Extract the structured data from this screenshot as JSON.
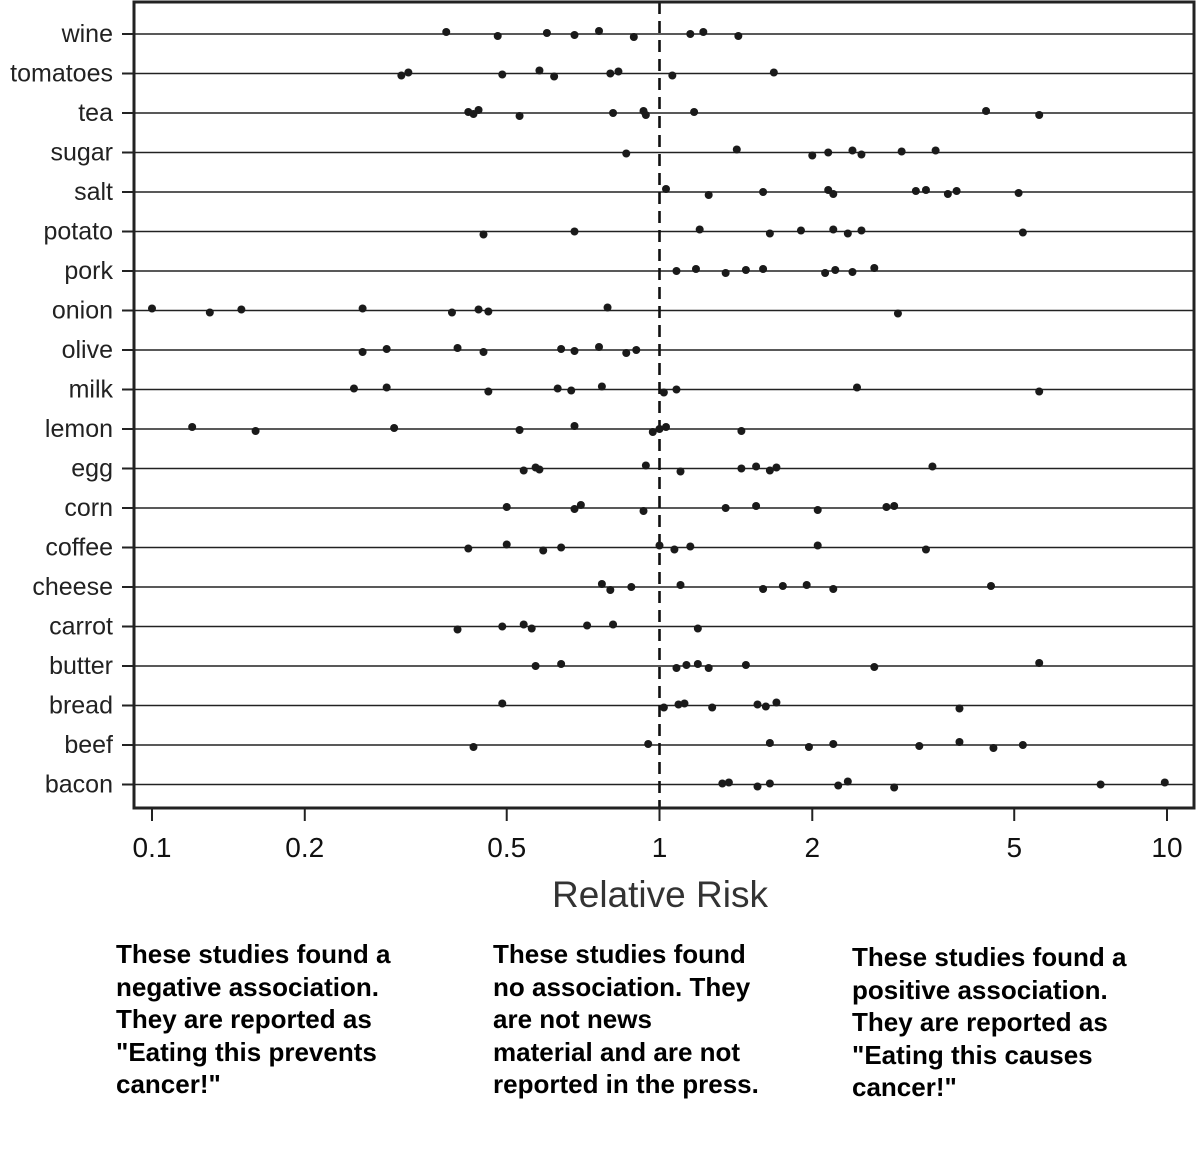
{
  "chart_data": {
    "type": "scatter",
    "xlabel": "Relative Risk",
    "xscale": "log",
    "xlim": [
      0.095,
      10.5
    ],
    "xticks": [
      0.1,
      0.2,
      0.5,
      1,
      2,
      5,
      10
    ],
    "xtick_labels": [
      "0.1",
      "0.2",
      "0.5",
      "1",
      "2",
      "5",
      "10"
    ],
    "reference_line": 1,
    "categories": [
      "wine",
      "tomatoes",
      "tea",
      "sugar",
      "salt",
      "potato",
      "pork",
      "onion",
      "olive",
      "milk",
      "lemon",
      "egg",
      "corn",
      "coffee",
      "cheese",
      "carrot",
      "butter",
      "bread",
      "beef",
      "bacon"
    ],
    "series": [
      {
        "name": "wine",
        "values": [
          0.38,
          0.48,
          0.6,
          0.68,
          0.76,
          0.89,
          1.15,
          1.22,
          1.43
        ]
      },
      {
        "name": "tomatoes",
        "values": [
          0.31,
          0.32,
          0.49,
          0.58,
          0.62,
          0.8,
          0.83,
          1.06,
          1.68
        ]
      },
      {
        "name": "tea",
        "values": [
          0.42,
          0.43,
          0.44,
          0.53,
          0.81,
          0.93,
          0.94,
          1.17,
          4.4,
          5.6
        ]
      },
      {
        "name": "sugar",
        "values": [
          0.86,
          1.42,
          2.0,
          2.15,
          2.4,
          2.5,
          3.0,
          3.5
        ]
      },
      {
        "name": "salt",
        "values": [
          1.03,
          1.25,
          1.6,
          2.15,
          2.2,
          3.2,
          3.35,
          3.7,
          3.85,
          5.1
        ]
      },
      {
        "name": "potato",
        "values": [
          0.45,
          0.68,
          1.2,
          1.65,
          1.9,
          2.2,
          2.35,
          2.5,
          5.2
        ]
      },
      {
        "name": "pork",
        "values": [
          1.08,
          1.18,
          1.35,
          1.48,
          1.6,
          2.12,
          2.22,
          2.4,
          2.65
        ]
      },
      {
        "name": "onion",
        "values": [
          0.1,
          0.13,
          0.15,
          0.26,
          0.39,
          0.44,
          0.46,
          0.79,
          2.95
        ]
      },
      {
        "name": "olive",
        "values": [
          0.26,
          0.29,
          0.4,
          0.45,
          0.64,
          0.68,
          0.76,
          0.86,
          0.9
        ]
      },
      {
        "name": "milk",
        "values": [
          0.25,
          0.29,
          0.46,
          0.63,
          0.67,
          0.77,
          1.02,
          1.08,
          2.45,
          5.6
        ]
      },
      {
        "name": "lemon",
        "values": [
          0.12,
          0.16,
          0.3,
          0.53,
          0.68,
          0.97,
          1.0,
          1.03,
          1.45
        ]
      },
      {
        "name": "egg",
        "values": [
          0.54,
          0.57,
          0.58,
          0.94,
          1.1,
          1.45,
          1.55,
          1.65,
          1.7,
          3.45
        ]
      },
      {
        "name": "corn",
        "values": [
          0.5,
          0.68,
          0.7,
          0.93,
          1.35,
          1.55,
          2.05,
          2.8,
          2.9
        ]
      },
      {
        "name": "coffee",
        "values": [
          0.42,
          0.5,
          0.59,
          0.64,
          1.0,
          1.07,
          1.15,
          2.05,
          3.35
        ]
      },
      {
        "name": "cheese",
        "values": [
          0.77,
          0.8,
          0.88,
          1.1,
          1.6,
          1.75,
          1.95,
          2.2,
          4.5
        ]
      },
      {
        "name": "carrot",
        "values": [
          0.4,
          0.49,
          0.54,
          0.56,
          0.72,
          0.81,
          1.19
        ]
      },
      {
        "name": "butter",
        "values": [
          0.57,
          0.64,
          1.08,
          1.13,
          1.19,
          1.25,
          1.48,
          2.65,
          5.6
        ]
      },
      {
        "name": "bread",
        "values": [
          0.49,
          1.02,
          1.09,
          1.12,
          1.27,
          1.56,
          1.62,
          1.7,
          3.9
        ]
      },
      {
        "name": "beef",
        "values": [
          0.43,
          0.95,
          1.65,
          1.97,
          2.2,
          3.25,
          3.9,
          4.55,
          5.2
        ]
      },
      {
        "name": "bacon",
        "values": [
          1.33,
          1.37,
          1.56,
          1.65,
          2.25,
          2.35,
          2.9,
          7.4,
          9.9
        ]
      }
    ]
  },
  "annotations": {
    "negative": [
      "These studies found a",
      "negative association.",
      "They are reported as",
      "\"Eating this prevents",
      "cancer!\""
    ],
    "none": [
      "These studies found",
      "no association. They",
      "are not news",
      "material and are not",
      "reported in the press."
    ],
    "positive": [
      "These studies found a",
      "positive association.",
      "They are reported as",
      "\"Eating this causes",
      "cancer!\""
    ]
  },
  "colors": {
    "points": "#1a1a1a",
    "rows": "#222222",
    "frame": "#222222",
    "text": "#111111"
  }
}
